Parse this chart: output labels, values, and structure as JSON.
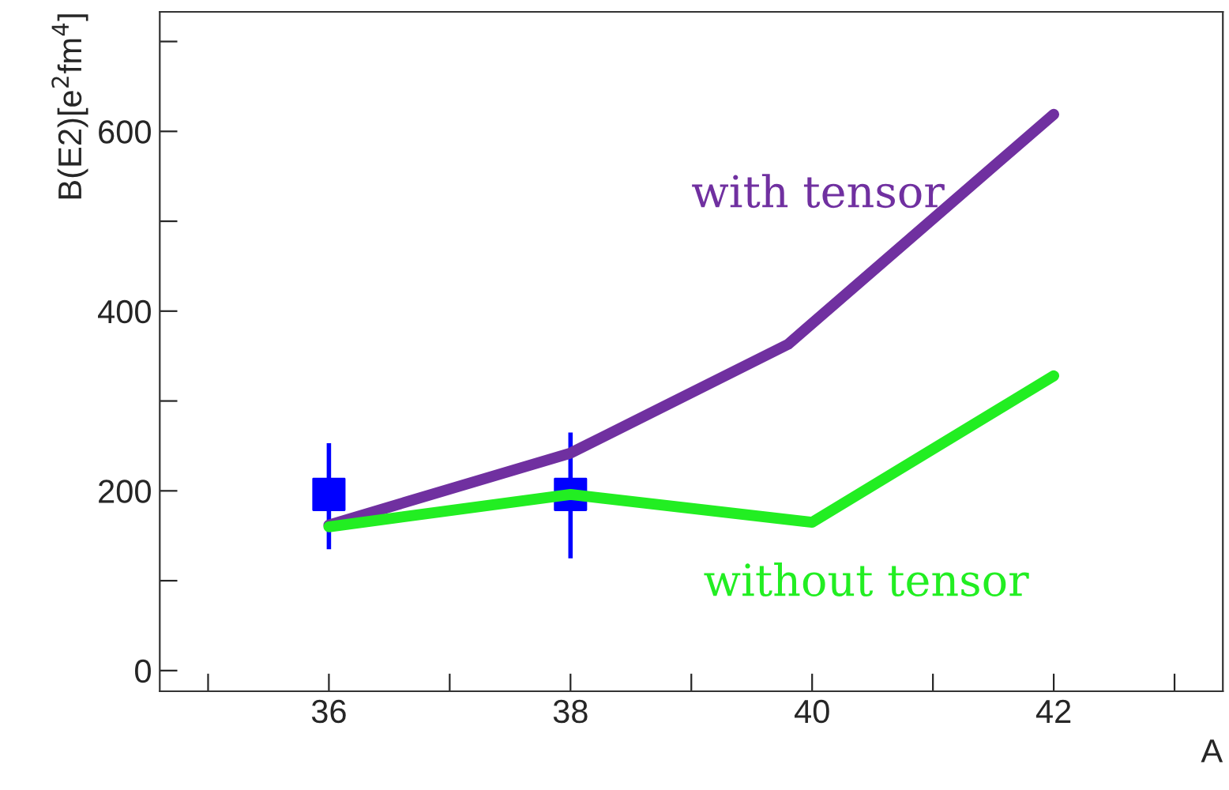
{
  "chart_data": {
    "type": "line",
    "xlabel": "A",
    "ylabel": "B(E2)[e$^{2}$fm$^{4}$]",
    "xlim": [
      34.6,
      43.4
    ],
    "ylim": [
      -23,
      733
    ],
    "xticks": [
      {
        "value": 35,
        "label": null
      },
      36,
      {
        "value": 37,
        "label": null
      },
      38,
      {
        "value": 39,
        "label": null
      },
      40,
      {
        "value": 41,
        "label": null
      },
      42,
      {
        "value": 43,
        "label": null
      }
    ],
    "yticks": [
      0,
      {
        "value": 100,
        "label": null
      },
      200,
      {
        "value": 300,
        "label": null
      },
      400,
      {
        "value": 500,
        "label": null
      },
      600,
      {
        "value": 700,
        "label": null
      }
    ],
    "grid": false,
    "legend": false,
    "series": [
      {
        "name": "with tensor",
        "color": "#7030a0",
        "x": [
          36,
          38,
          39.8,
          42
        ],
        "values": [
          162,
          242,
          363,
          619
        ]
      },
      {
        "name": "without tensor",
        "color": "#22ee22",
        "x": [
          36,
          38,
          40,
          42
        ],
        "values": [
          160,
          196,
          165,
          328
        ]
      },
      {
        "type": "scatter",
        "marker": "square",
        "color": "#0000ff",
        "x": [
          36,
          38
        ],
        "values": [
          196,
          196
        ],
        "errors": [
          [
            135,
            253
          ],
          [
            125,
            265
          ]
        ]
      }
    ]
  }
}
